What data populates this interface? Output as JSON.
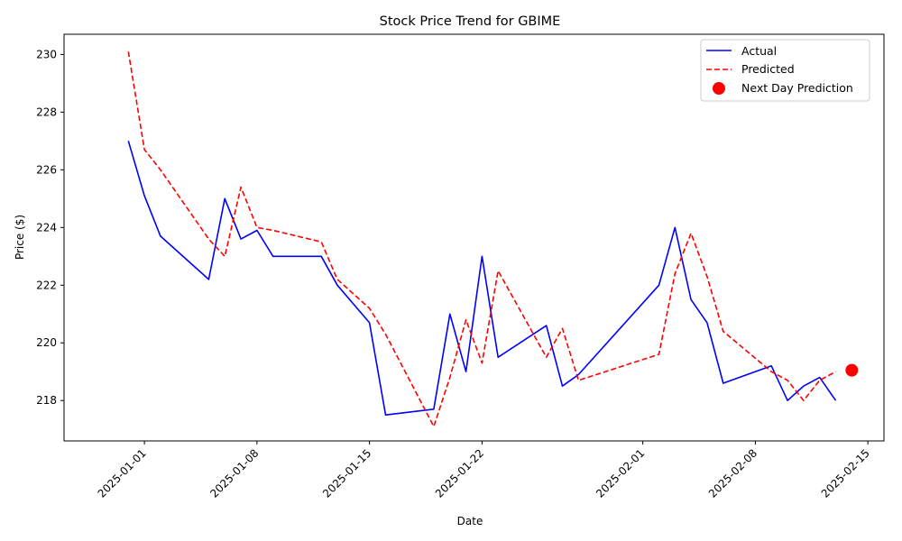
{
  "chart_data": {
    "type": "line",
    "title": "Stock Price Trend for GBIME",
    "xlabel": "Date",
    "ylabel": "Price ($)",
    "xlim": [
      "2024-12-27",
      "2025-02-16"
    ],
    "ylim": [
      216.6,
      230.7
    ],
    "grid": false,
    "legend_position": "top-right",
    "x_ticks": [
      "2025-01-01",
      "2025-01-08",
      "2025-01-15",
      "2025-01-22",
      "2025-02-01",
      "2025-02-08",
      "2025-02-15"
    ],
    "y_ticks": [
      218,
      220,
      222,
      224,
      226,
      228,
      230
    ],
    "series": [
      {
        "name": "Actual",
        "color": "#0000ff",
        "style": "solid",
        "points": [
          [
            "2024-12-31",
            227.0
          ],
          [
            "2025-01-01",
            225.1
          ],
          [
            "2025-01-02",
            223.7
          ],
          [
            "2025-01-05",
            222.2
          ],
          [
            "2025-01-06",
            225.0
          ],
          [
            "2025-01-07",
            223.6
          ],
          [
            "2025-01-08",
            223.9
          ],
          [
            "2025-01-09",
            223.0
          ],
          [
            "2025-01-12",
            223.0
          ],
          [
            "2025-01-13",
            222.0
          ],
          [
            "2025-01-15",
            220.7
          ],
          [
            "2025-01-16",
            217.5
          ],
          [
            "2025-01-19",
            217.7
          ],
          [
            "2025-01-20",
            221.0
          ],
          [
            "2025-01-21",
            219.0
          ],
          [
            "2025-01-22",
            223.0
          ],
          [
            "2025-01-23",
            219.5
          ],
          [
            "2025-01-26",
            220.6
          ],
          [
            "2025-01-27",
            218.5
          ],
          [
            "2025-01-28",
            218.9
          ],
          [
            "2025-02-02",
            222.0
          ],
          [
            "2025-02-03",
            224.0
          ],
          [
            "2025-02-04",
            221.5
          ],
          [
            "2025-02-05",
            220.7
          ],
          [
            "2025-02-06",
            218.6
          ],
          [
            "2025-02-09",
            219.2
          ],
          [
            "2025-02-10",
            218.0
          ],
          [
            "2025-02-11",
            218.5
          ],
          [
            "2025-02-12",
            218.8
          ],
          [
            "2025-02-13",
            218.0
          ]
        ]
      },
      {
        "name": "Predicted",
        "color": "#ff0000",
        "style": "dashed",
        "points": [
          [
            "2024-12-31",
            230.1
          ],
          [
            "2025-01-01",
            226.7
          ],
          [
            "2025-01-02",
            226.0
          ],
          [
            "2025-01-05",
            223.6
          ],
          [
            "2025-01-06",
            223.0
          ],
          [
            "2025-01-07",
            225.4
          ],
          [
            "2025-01-08",
            224.0
          ],
          [
            "2025-01-09",
            223.9
          ],
          [
            "2025-01-12",
            223.5
          ],
          [
            "2025-01-13",
            222.2
          ],
          [
            "2025-01-15",
            221.2
          ],
          [
            "2025-01-16",
            220.3
          ],
          [
            "2025-01-19",
            217.1
          ],
          [
            "2025-01-20",
            218.8
          ],
          [
            "2025-01-21",
            220.8
          ],
          [
            "2025-01-22",
            219.3
          ],
          [
            "2025-01-23",
            222.5
          ],
          [
            "2025-01-26",
            219.5
          ],
          [
            "2025-01-27",
            220.5
          ],
          [
            "2025-01-28",
            218.7
          ],
          [
            "2025-02-02",
            219.6
          ],
          [
            "2025-02-03",
            222.4
          ],
          [
            "2025-02-04",
            223.8
          ],
          [
            "2025-02-05",
            222.3
          ],
          [
            "2025-02-06",
            220.4
          ],
          [
            "2025-02-09",
            219.0
          ],
          [
            "2025-02-10",
            218.7
          ],
          [
            "2025-02-11",
            218.0
          ],
          [
            "2025-02-12",
            218.7
          ],
          [
            "2025-02-13",
            219.0
          ]
        ]
      },
      {
        "name": "Next Day Prediction",
        "color": "#ff0000",
        "style": "marker",
        "points": [
          [
            "2025-02-14",
            219.05
          ]
        ]
      }
    ]
  }
}
